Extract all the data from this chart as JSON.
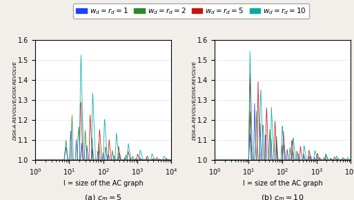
{
  "title_a": "(a) $c_m = 5$",
  "title_b": "(b) $c_m = 10$",
  "xlabel": "l = size of the AC graph",
  "ylabel": "DISK-A-REVOLVE/DISK-REVOLVE",
  "xlim": [
    1.0,
    10000.0
  ],
  "ylim": [
    1.0,
    1.6
  ],
  "yticks": [
    1.0,
    1.1,
    1.2,
    1.3,
    1.4,
    1.5,
    1.6
  ],
  "colors": [
    "#1f3fff",
    "#2a8a2a",
    "#cc1111",
    "#00aaaa"
  ],
  "labels": [
    "$w_d = r_d = 1$",
    "$w_d = r_d = 2$",
    "$w_d = r_d = 5$",
    "$w_d = r_d = 10$"
  ],
  "wd_rd_vals": [
    1,
    2,
    5,
    10
  ],
  "cm_a": 5,
  "cm_b": 10,
  "background_color": "#f2eeea",
  "legend_fontsize": 8,
  "tick_fontsize": 7,
  "label_fontsize": 7
}
